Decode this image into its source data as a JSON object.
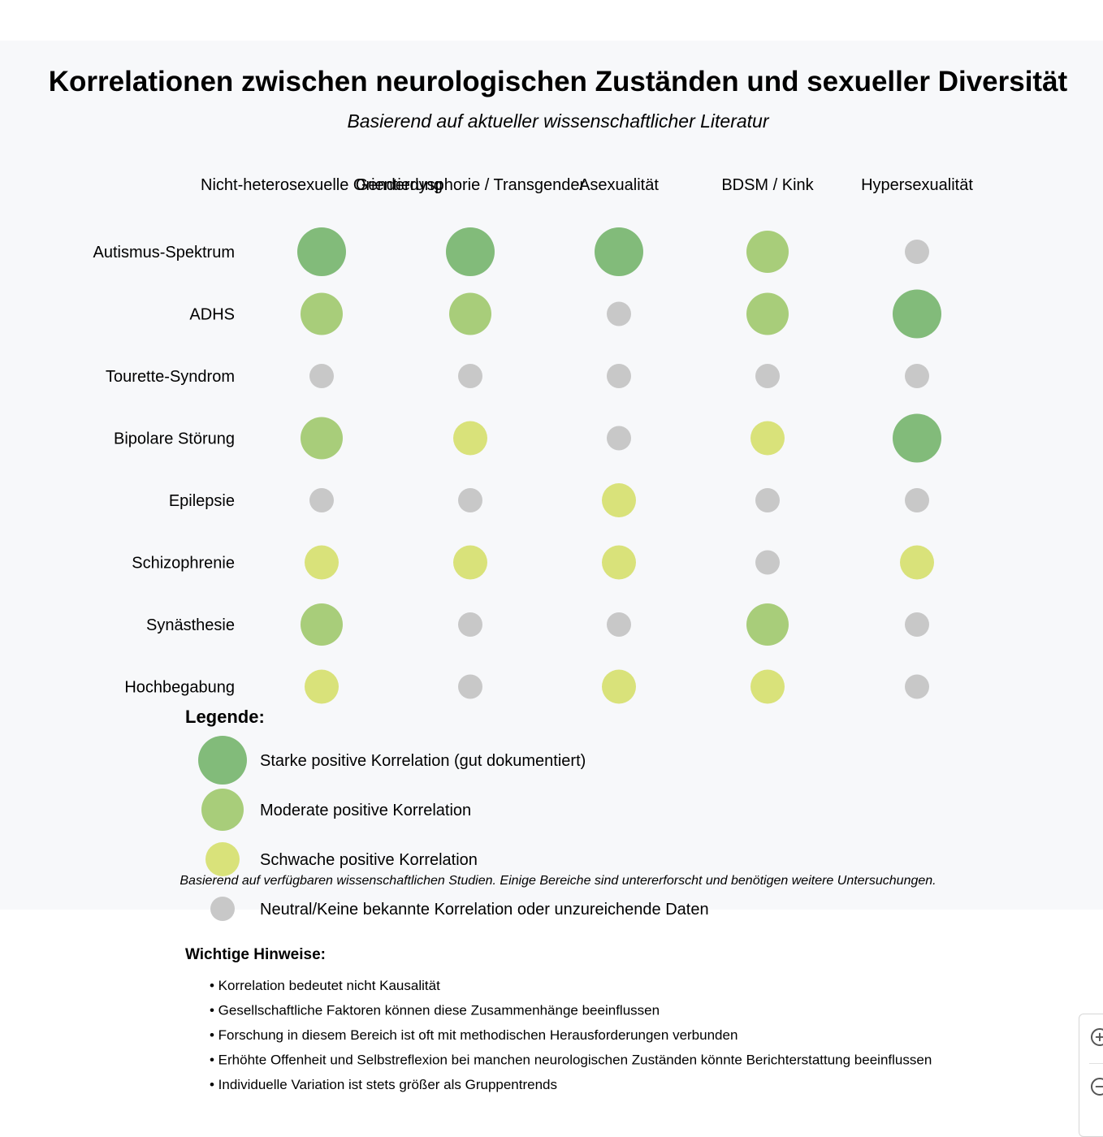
{
  "chart_data": {
    "type": "bubble-matrix",
    "title": "Korrelationen zwischen neurologischen Zuständen und sexueller Diversität",
    "subtitle": "Basierend auf aktueller wissenschaftlicher Literatur",
    "columns": [
      "Nicht-heterosexuelle Orientierung",
      "Genderdysphorie / Transgender",
      "Asexualität",
      "BDSM / Kink",
      "Hypersexualität"
    ],
    "rows": [
      "Autismus-Spektrum",
      "ADHS",
      "Tourette-Syndrom",
      "Bipolare Störung",
      "Epilepsie",
      "Schizophrenie",
      "Synästhesie",
      "Hochbegabung"
    ],
    "levels": [
      {
        "value": 3,
        "label": "Starke positive Korrelation (gut dokumentiert)",
        "color": "#82bb7a"
      },
      {
        "value": 2,
        "label": "Moderate positive Korrelation",
        "color": "#a8cd7a"
      },
      {
        "value": 1,
        "label": "Schwache positive Korrelation",
        "color": "#d9e27a"
      },
      {
        "value": 0,
        "label": "Neutral/Keine bekannte Korrelation oder unzureichende Daten",
        "color": "#c8c8c8"
      }
    ],
    "values": [
      [
        3,
        3,
        3,
        2,
        0
      ],
      [
        2,
        2,
        0,
        2,
        3
      ],
      [
        0,
        0,
        0,
        0,
        0
      ],
      [
        2,
        1,
        0,
        1,
        3
      ],
      [
        0,
        0,
        1,
        0,
        0
      ],
      [
        1,
        1,
        1,
        0,
        1
      ],
      [
        2,
        0,
        0,
        2,
        0
      ],
      [
        1,
        0,
        1,
        1,
        0
      ]
    ],
    "legend_title": "Legende:",
    "footnote": "Basierend auf verfügbaren wissenschaftlichen Studien. Einige Bereiche sind untererforscht und benötigen weitere Untersuchungen."
  },
  "notes": {
    "title": "Wichtige Hinweise:",
    "items": [
      "• Korrelation bedeutet nicht Kausalität",
      "• Gesellschaftliche Faktoren können diese Zusammenhänge beeinflussen",
      "• Forschung in diesem Bereich ist oft mit methodischen Herausforderungen verbunden",
      "• Erhöhte Offenheit und Selbstreflexion bei manchen neurologischen Zuständen könnte Berichterstattung beeinflussen",
      "• Individuelle Variation ist stets größer als Gruppentrends"
    ]
  },
  "zoom": {
    "in_label": "+",
    "out_label": "−"
  }
}
